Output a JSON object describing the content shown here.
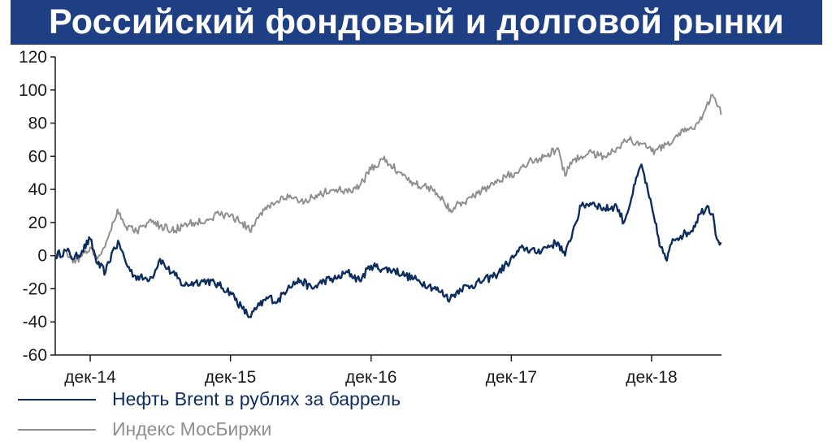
{
  "title": "Российский фондовый и долговой рынки",
  "colors": {
    "title_bg": "#1e3f84",
    "oil": "#0c2d5e",
    "moex": "#8f8f8f",
    "axis": "#1a1a1a"
  },
  "chart_data": {
    "type": "line",
    "title": "",
    "xlabel": "",
    "ylabel": "",
    "ylim": [
      -60,
      120
    ],
    "yticks": [
      -60,
      -40,
      -20,
      0,
      20,
      40,
      60,
      80,
      100,
      120
    ],
    "ytick_labels": [
      "-60",
      "-40",
      "-20",
      "0",
      "20",
      "40",
      "60",
      "80",
      "100",
      "120"
    ],
    "xlim": [
      "2014-09-01",
      "2019-06-01"
    ],
    "xticks": [
      "2014-12-01",
      "2015-12-01",
      "2016-12-01",
      "2017-12-01",
      "2018-12-01"
    ],
    "xtick_labels": [
      "дек-14",
      "дек-15",
      "дек-16",
      "дек-17",
      "дек-18"
    ],
    "grid": false,
    "legend_position": "bottom-left",
    "series": [
      {
        "name": "Нефть Brent в рублях за баррель",
        "color": "#0c2d5e",
        "points": [
          [
            "2014-09-01",
            0
          ],
          [
            "2014-10-01",
            3
          ],
          [
            "2014-10-20",
            -2
          ],
          [
            "2014-11-10",
            3
          ],
          [
            "2014-12-01",
            10
          ],
          [
            "2014-12-20",
            -5
          ],
          [
            "2015-01-10",
            -10
          ],
          [
            "2015-02-01",
            5
          ],
          [
            "2015-02-15",
            7
          ],
          [
            "2015-03-05",
            -5
          ],
          [
            "2015-03-25",
            -12
          ],
          [
            "2015-04-20",
            -14
          ],
          [
            "2015-05-10",
            -13
          ],
          [
            "2015-06-01",
            -2
          ],
          [
            "2015-06-20",
            -8
          ],
          [
            "2015-07-10",
            -12
          ],
          [
            "2015-08-01",
            -18
          ],
          [
            "2015-09-01",
            -16
          ],
          [
            "2015-10-01",
            -15
          ],
          [
            "2015-11-01",
            -18
          ],
          [
            "2015-12-01",
            -22
          ],
          [
            "2016-01-01",
            -32
          ],
          [
            "2016-01-20",
            -37
          ],
          [
            "2016-02-15",
            -30
          ],
          [
            "2016-03-10",
            -25
          ],
          [
            "2016-04-01",
            -28
          ],
          [
            "2016-05-01",
            -18
          ],
          [
            "2016-06-01",
            -15
          ],
          [
            "2016-07-01",
            -20
          ],
          [
            "2016-08-01",
            -15
          ],
          [
            "2016-09-01",
            -14
          ],
          [
            "2016-10-01",
            -10
          ],
          [
            "2016-11-01",
            -15
          ],
          [
            "2016-12-01",
            -6
          ],
          [
            "2017-01-01",
            -8
          ],
          [
            "2017-02-01",
            -9
          ],
          [
            "2017-03-01",
            -12
          ],
          [
            "2017-04-01",
            -15
          ],
          [
            "2017-05-01",
            -18
          ],
          [
            "2017-06-01",
            -22
          ],
          [
            "2017-06-25",
            -26
          ],
          [
            "2017-07-20",
            -20
          ],
          [
            "2017-08-20",
            -18
          ],
          [
            "2017-09-20",
            -15
          ],
          [
            "2017-10-20",
            -12
          ],
          [
            "2017-11-20",
            -5
          ],
          [
            "2017-12-10",
            0
          ],
          [
            "2018-01-01",
            5
          ],
          [
            "2018-02-01",
            2
          ],
          [
            "2018-03-01",
            5
          ],
          [
            "2018-04-01",
            8
          ],
          [
            "2018-04-20",
            0
          ],
          [
            "2018-05-10",
            15
          ],
          [
            "2018-06-01",
            30
          ],
          [
            "2018-07-01",
            32
          ],
          [
            "2018-08-01",
            28
          ],
          [
            "2018-09-01",
            30
          ],
          [
            "2018-09-20",
            20
          ],
          [
            "2018-10-10",
            35
          ],
          [
            "2018-10-25",
            48
          ],
          [
            "2018-11-05",
            55
          ],
          [
            "2018-11-25",
            35
          ],
          [
            "2018-12-10",
            20
          ],
          [
            "2018-12-25",
            5
          ],
          [
            "2019-01-10",
            -3
          ],
          [
            "2019-01-25",
            10
          ],
          [
            "2019-02-15",
            12
          ],
          [
            "2019-03-15",
            15
          ],
          [
            "2019-04-05",
            25
          ],
          [
            "2019-04-25",
            30
          ],
          [
            "2019-05-10",
            25
          ],
          [
            "2019-05-20",
            10
          ],
          [
            "2019-05-31",
            8
          ]
        ]
      },
      {
        "name": "Индекс МосБиржи",
        "color": "#8f8f8f",
        "points": [
          [
            "2014-09-01",
            0
          ],
          [
            "2014-10-01",
            2
          ],
          [
            "2014-10-20",
            -3
          ],
          [
            "2014-11-10",
            0
          ],
          [
            "2014-12-01",
            5
          ],
          [
            "2014-12-20",
            -2
          ],
          [
            "2015-01-15",
            10
          ],
          [
            "2015-02-10",
            28
          ],
          [
            "2015-03-01",
            18
          ],
          [
            "2015-04-01",
            15
          ],
          [
            "2015-05-01",
            20
          ],
          [
            "2015-06-01",
            18
          ],
          [
            "2015-07-01",
            15
          ],
          [
            "2015-08-01",
            18
          ],
          [
            "2015-09-01",
            20
          ],
          [
            "2015-10-01",
            22
          ],
          [
            "2015-11-01",
            25
          ],
          [
            "2015-12-01",
            24
          ],
          [
            "2016-01-01",
            20
          ],
          [
            "2016-01-20",
            15
          ],
          [
            "2016-02-15",
            25
          ],
          [
            "2016-03-10",
            30
          ],
          [
            "2016-04-01",
            33
          ],
          [
            "2016-05-01",
            35
          ],
          [
            "2016-06-01",
            33
          ],
          [
            "2016-07-01",
            35
          ],
          [
            "2016-08-01",
            38
          ],
          [
            "2016-09-01",
            40
          ],
          [
            "2016-10-01",
            38
          ],
          [
            "2016-11-01",
            42
          ],
          [
            "2016-12-01",
            52
          ],
          [
            "2017-01-01",
            58
          ],
          [
            "2017-01-20",
            55
          ],
          [
            "2017-02-15",
            50
          ],
          [
            "2017-03-15",
            45
          ],
          [
            "2017-04-15",
            42
          ],
          [
            "2017-05-15",
            40
          ],
          [
            "2017-06-10",
            32
          ],
          [
            "2017-06-25",
            28
          ],
          [
            "2017-07-20",
            32
          ],
          [
            "2017-08-20",
            35
          ],
          [
            "2017-09-20",
            40
          ],
          [
            "2017-10-20",
            45
          ],
          [
            "2017-11-20",
            48
          ],
          [
            "2017-12-10",
            50
          ],
          [
            "2018-01-01",
            55
          ],
          [
            "2018-02-01",
            58
          ],
          [
            "2018-03-01",
            60
          ],
          [
            "2018-04-01",
            65
          ],
          [
            "2018-04-20",
            48
          ],
          [
            "2018-05-10",
            58
          ],
          [
            "2018-06-01",
            60
          ],
          [
            "2018-07-01",
            62
          ],
          [
            "2018-08-01",
            60
          ],
          [
            "2018-09-01",
            65
          ],
          [
            "2018-10-01",
            70
          ],
          [
            "2018-11-01",
            68
          ],
          [
            "2018-12-01",
            63
          ],
          [
            "2019-01-01",
            65
          ],
          [
            "2019-02-01",
            72
          ],
          [
            "2019-03-01",
            75
          ],
          [
            "2019-04-01",
            80
          ],
          [
            "2019-04-20",
            88
          ],
          [
            "2019-05-05",
            97
          ],
          [
            "2019-05-15",
            95
          ],
          [
            "2019-05-25",
            90
          ],
          [
            "2019-05-31",
            85
          ]
        ]
      }
    ]
  }
}
